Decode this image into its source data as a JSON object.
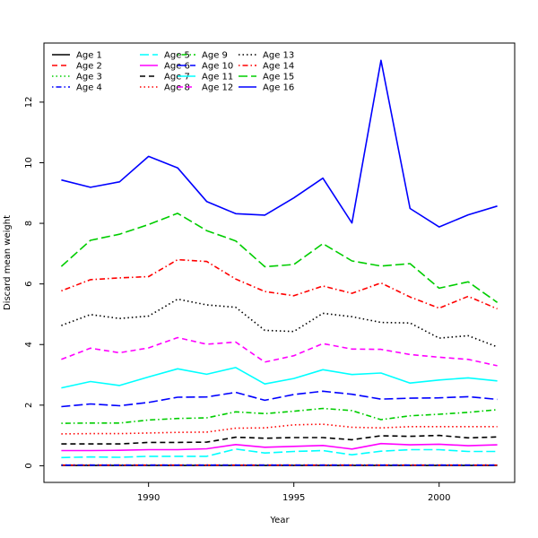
{
  "chart_data": {
    "type": "line",
    "title": "",
    "xlabel": "Year",
    "ylabel": "Discard mean weight",
    "xlim": [
      1986.4,
      2002.6
    ],
    "ylim": [
      -0.55,
      13.95
    ],
    "xticks": [
      1990,
      1995,
      2000
    ],
    "yticks": [
      0,
      2,
      4,
      6,
      8,
      10,
      12
    ],
    "legend_position": "top-left",
    "x": [
      1987,
      1988,
      1989,
      1990,
      1991,
      1992,
      1993,
      1994,
      1995,
      1996,
      1997,
      1998,
      1999,
      2000,
      2001,
      2002
    ],
    "series": [
      {
        "name": "Age 1",
        "color": "#000000",
        "dash": "solid",
        "values": [
          0.01,
          0.01,
          0.01,
          0.01,
          0.01,
          0.01,
          0.01,
          0.01,
          0.01,
          0.01,
          0.01,
          0.01,
          0.01,
          0.01,
          0.01,
          0.01
        ]
      },
      {
        "name": "Age 2",
        "color": "#ff0000",
        "dash": "dashed",
        "values": [
          0.02,
          0.02,
          0.02,
          0.02,
          0.02,
          0.02,
          0.02,
          0.02,
          0.02,
          0.02,
          0.02,
          0.02,
          0.02,
          0.02,
          0.02,
          0.02
        ]
      },
      {
        "name": "Age 3",
        "color": "#00cd00",
        "dash": "dotted",
        "values": [
          0.02,
          0.02,
          0.02,
          0.02,
          0.02,
          0.02,
          0.02,
          0.02,
          0.02,
          0.02,
          0.02,
          0.02,
          0.02,
          0.02,
          0.02,
          0.02
        ]
      },
      {
        "name": "Age 4",
        "color": "#0000ff",
        "dash": "dotdash",
        "values": [
          0.02,
          0.02,
          0.02,
          0.02,
          0.02,
          0.02,
          0.02,
          0.02,
          0.02,
          0.02,
          0.02,
          0.02,
          0.02,
          0.02,
          0.02,
          0.02
        ]
      },
      {
        "name": "Age 5",
        "color": "#00ffff",
        "dash": "longdash",
        "values": [
          0.27,
          0.29,
          0.28,
          0.31,
          0.31,
          0.31,
          0.55,
          0.42,
          0.47,
          0.5,
          0.36,
          0.48,
          0.53,
          0.53,
          0.47,
          0.47
        ]
      },
      {
        "name": "Age 6",
        "color": "#ff00ff",
        "dash": "solid",
        "values": [
          0.5,
          0.5,
          0.51,
          0.53,
          0.53,
          0.56,
          0.7,
          0.61,
          0.64,
          0.67,
          0.55,
          0.73,
          0.69,
          0.71,
          0.66,
          0.69
        ]
      },
      {
        "name": "Age 7",
        "color": "#000000",
        "dash": "dashed",
        "values": [
          0.72,
          0.72,
          0.72,
          0.77,
          0.77,
          0.78,
          0.94,
          0.91,
          0.93,
          0.93,
          0.86,
          0.99,
          0.97,
          1.0,
          0.92,
          0.95
        ]
      },
      {
        "name": "Age 8",
        "color": "#ff0000",
        "dash": "dotted",
        "values": [
          1.05,
          1.06,
          1.06,
          1.08,
          1.1,
          1.11,
          1.24,
          1.25,
          1.35,
          1.37,
          1.27,
          1.25,
          1.29,
          1.29,
          1.29,
          1.29
        ]
      },
      {
        "name": "Age 9",
        "color": "#00cd00",
        "dash": "dotdash",
        "values": [
          1.4,
          1.41,
          1.41,
          1.51,
          1.56,
          1.58,
          1.78,
          1.72,
          1.8,
          1.89,
          1.82,
          1.52,
          1.65,
          1.7,
          1.76,
          1.85
        ]
      },
      {
        "name": "Age 10",
        "color": "#0000ff",
        "dash": "longdash",
        "values": [
          1.95,
          2.04,
          1.98,
          2.09,
          2.26,
          2.27,
          2.42,
          2.16,
          2.35,
          2.46,
          2.36,
          2.2,
          2.23,
          2.24,
          2.28,
          2.19
        ]
      },
      {
        "name": "Age 11",
        "color": "#00ffff",
        "dash": "solid",
        "values": [
          2.57,
          2.78,
          2.65,
          2.93,
          3.2,
          3.02,
          3.24,
          2.7,
          2.88,
          3.17,
          3.01,
          3.06,
          2.73,
          2.83,
          2.9,
          2.8
        ]
      },
      {
        "name": "Age 12",
        "color": "#ff00ff",
        "dash": "dashed",
        "values": [
          3.51,
          3.88,
          3.73,
          3.89,
          4.23,
          4.01,
          4.08,
          3.42,
          3.63,
          4.03,
          3.85,
          3.84,
          3.67,
          3.58,
          3.51,
          3.3
        ]
      },
      {
        "name": "Age 13",
        "color": "#000000",
        "dash": "dotted",
        "values": [
          4.63,
          4.99,
          4.86,
          4.94,
          5.5,
          5.31,
          5.23,
          4.47,
          4.43,
          5.03,
          4.92,
          4.73,
          4.71,
          4.21,
          4.29,
          3.92
        ]
      },
      {
        "name": "Age 14",
        "color": "#ff0000",
        "dash": "dotdash",
        "values": [
          5.77,
          6.14,
          6.2,
          6.24,
          6.8,
          6.74,
          6.16,
          5.75,
          5.61,
          5.93,
          5.69,
          6.03,
          5.57,
          5.2,
          5.59,
          5.18
        ]
      },
      {
        "name": "Age 15",
        "color": "#00cd00",
        "dash": "longdash",
        "values": [
          6.58,
          7.44,
          7.64,
          7.96,
          8.33,
          7.76,
          7.42,
          6.57,
          6.64,
          7.33,
          6.76,
          6.59,
          6.67,
          5.86,
          6.07,
          5.39
        ]
      },
      {
        "name": "Age 16",
        "color": "#0000ff",
        "dash": "solid",
        "values": [
          9.43,
          9.19,
          9.37,
          10.21,
          9.83,
          8.72,
          8.32,
          8.27,
          8.84,
          9.49,
          8.01,
          13.38,
          8.49,
          7.88,
          8.28,
          8.57
        ]
      }
    ]
  }
}
